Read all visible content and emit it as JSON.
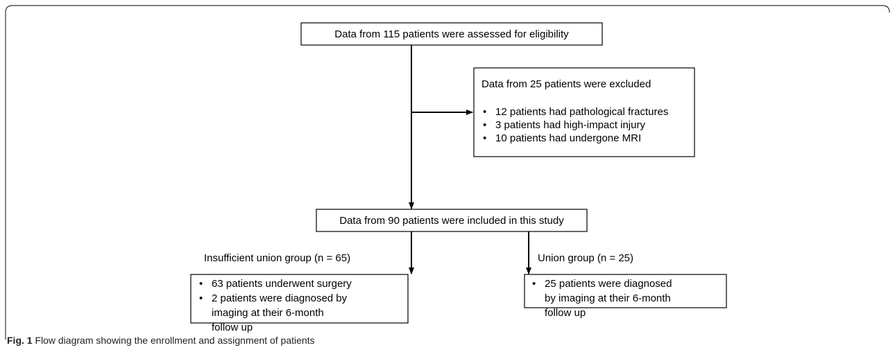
{
  "nodes": [
    {
      "label": "Data from 115 patients were assessed for eligibility"
    },
    {
      "label": "Data from 25 patients were excluded",
      "bullets": [
        "12 patients had pathological fractures",
        "3 patients had high-impact injury",
        "10 patients had undergone MRI"
      ]
    },
    {
      "label": "Data from 90 patients were included in this study"
    },
    {
      "label": "Insufficient union group (n = 65)",
      "bullets": [
        "63 patients underwent surgery",
        "2 patients were diagnosed by imaging at their 6-month follow up"
      ]
    },
    {
      "label": "Union group (n = 25)",
      "bullets": [
        "25 patients were diagnosed by imaging at their 6-month follow up"
      ]
    }
  ],
  "caption": {
    "label": "Fig. 1",
    "text": "Flow diagram showing the enrollment and assignment of patients"
  }
}
